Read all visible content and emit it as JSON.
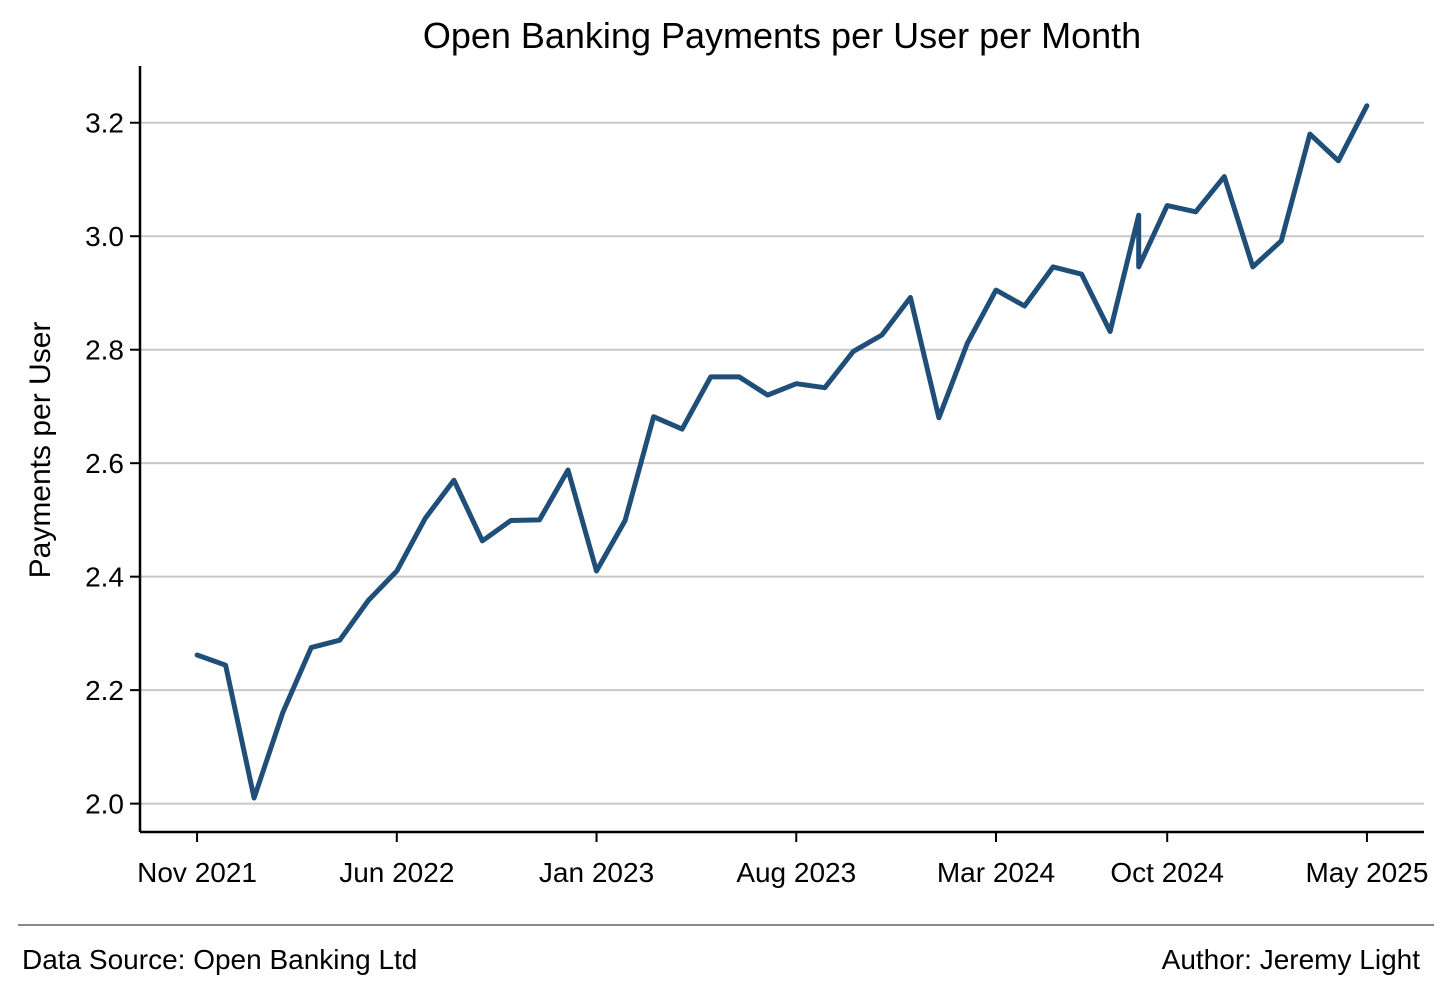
{
  "chart_data": {
    "type": "line",
    "title": "Open Banking Payments per User per Month",
    "ylabel": "Payments per User",
    "xlabel": "",
    "ylim": [
      1.95,
      3.3
    ],
    "yticks": [
      "2.0",
      "2.2",
      "2.4",
      "2.6",
      "2.8",
      "3.0",
      "3.2"
    ],
    "ytick_values": [
      2.0,
      2.2,
      2.4,
      2.6,
      2.8,
      3.0,
      3.2
    ],
    "xticks": [
      "Nov 2021",
      "Jun 2022",
      "Jan 2023",
      "Aug 2023",
      "Mar 2024",
      "Oct 2024",
      "May 2025"
    ],
    "xtick_positions": [
      0,
      7,
      14,
      21,
      28,
      34,
      41
    ],
    "xlim": [
      -2,
      43
    ],
    "grid": "horizontal",
    "line_color": "#1f4e79",
    "x": [
      0,
      1,
      2,
      3,
      4,
      5,
      6,
      7,
      8,
      9,
      10,
      11,
      12,
      13,
      14,
      15,
      16,
      17,
      18,
      19,
      20,
      21,
      22,
      23,
      24,
      25,
      26,
      27,
      28,
      29,
      30,
      31,
      32,
      33,
      33,
      34,
      35,
      36,
      37,
      38,
      39,
      40,
      41
    ],
    "values": [
      2.262,
      2.244,
      2.01,
      2.16,
      2.275,
      2.288,
      2.358,
      2.41,
      2.503,
      2.57,
      2.463,
      2.499,
      2.5,
      2.588,
      2.41,
      2.499,
      2.682,
      2.66,
      2.752,
      2.752,
      2.72,
      2.74,
      2.733,
      2.797,
      2.826,
      2.892,
      2.68,
      2.812,
      2.905,
      2.877,
      2.946,
      2.933,
      2.832,
      3.037,
      2.946,
      3.054,
      3.043,
      3.105,
      2.946,
      2.992,
      3.18,
      3.133,
      3.23
    ]
  },
  "footer": {
    "source": "Data Source: Open Banking Ltd",
    "author": "Author: Jeremy Light"
  }
}
